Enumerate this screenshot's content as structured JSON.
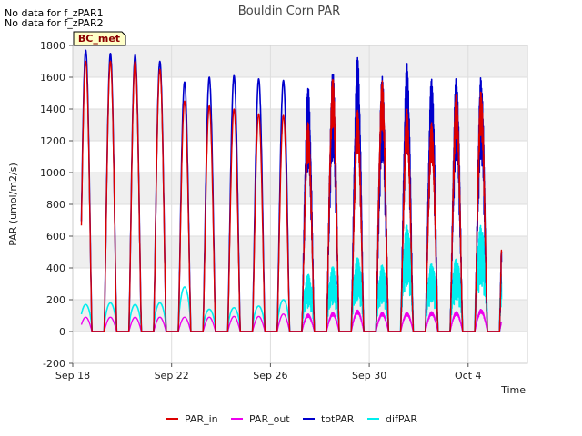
{
  "notes": {
    "line1": "No data for f_zPAR1",
    "line2": "No data for f_zPAR2"
  },
  "badge": {
    "label": "BC_met"
  },
  "colors": {
    "PAR_in": "#dd0000",
    "PAR_out": "#ee00ee",
    "totPAR": "#0000cc",
    "difPAR": "#00eeee",
    "band": "#efefef"
  },
  "chart_data": {
    "type": "line",
    "title": "Bouldin Corn PAR",
    "xlabel": "Time",
    "ylabel": "PAR (umol/m2/s)",
    "ylim": [
      -200,
      1800
    ],
    "yticks": [
      -200,
      0,
      200,
      400,
      600,
      800,
      1000,
      1200,
      1400,
      1600,
      1800
    ],
    "xlim_days": [
      0,
      18.4
    ],
    "xticks": [
      {
        "day": 0,
        "label": "Sep 18"
      },
      {
        "day": 4,
        "label": "Sep 22"
      },
      {
        "day": 8,
        "label": "Sep 26"
      },
      {
        "day": 12,
        "label": "Sep 30"
      },
      {
        "day": 16,
        "label": "Oct 4"
      }
    ],
    "grid": true,
    "legend": "bottom",
    "daily_peaks": {
      "days": [
        0,
        1,
        2,
        3,
        4,
        5,
        6,
        7,
        8,
        9,
        10,
        11,
        12,
        13,
        14,
        15,
        16
      ],
      "totPAR": [
        1770,
        1750,
        1740,
        1700,
        1570,
        1600,
        1610,
        1590,
        1580,
        1540,
        1640,
        1740,
        1610,
        1690,
        1600,
        1610,
        1610
      ],
      "PAR_in": [
        1700,
        1700,
        1700,
        1650,
        1450,
        1420,
        1400,
        1370,
        1360,
        1320,
        1600,
        1400,
        1580,
        1400,
        1320,
        1500,
        1520
      ],
      "difPAR": [
        170,
        180,
        170,
        180,
        280,
        140,
        150,
        160,
        200,
        360,
        410,
        470,
        420,
        670,
        430,
        460,
        670
      ],
      "PAR_out": [
        90,
        90,
        90,
        90,
        90,
        90,
        95,
        95,
        110,
        110,
        120,
        135,
        120,
        120,
        125,
        125,
        140
      ]
    },
    "series": [
      {
        "name": "PAR_in"
      },
      {
        "name": "PAR_out"
      },
      {
        "name": "totPAR"
      },
      {
        "name": "difPAR"
      }
    ]
  }
}
